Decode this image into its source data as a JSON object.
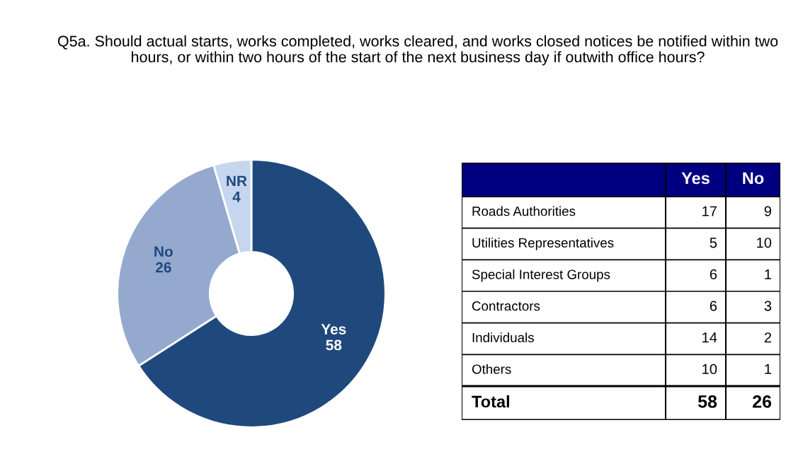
{
  "chart_data": [
    {
      "type": "donut",
      "title": "Q5a. Should actual starts, works completed, works cleared, and works closed notices be notified within two hours, or within two hours of the start of the next business day if outwith office hours?",
      "categories": [
        "Yes",
        "No",
        "NR"
      ],
      "values": [
        58,
        26,
        4
      ],
      "colors": [
        "#1f497d",
        "#95a9cf",
        "#c6d6ef"
      ],
      "data_labels": true
    },
    {
      "type": "heatmap",
      "data_labels": true,
      "categories": [
        "Yes",
        "No"
      ],
      "y_categories": [
        "Roads Authorities",
        "Utilities Representatives",
        "Special Interest Groups",
        "Contractors",
        "Individuals",
        "Others",
        "Total"
      ],
      "cells": [
        [
          17,
          9
        ],
        [
          5,
          10
        ],
        [
          6,
          1
        ],
        [
          6,
          3
        ],
        [
          14,
          2
        ],
        [
          10,
          1
        ],
        [
          58,
          26
        ]
      ]
    }
  ]
}
